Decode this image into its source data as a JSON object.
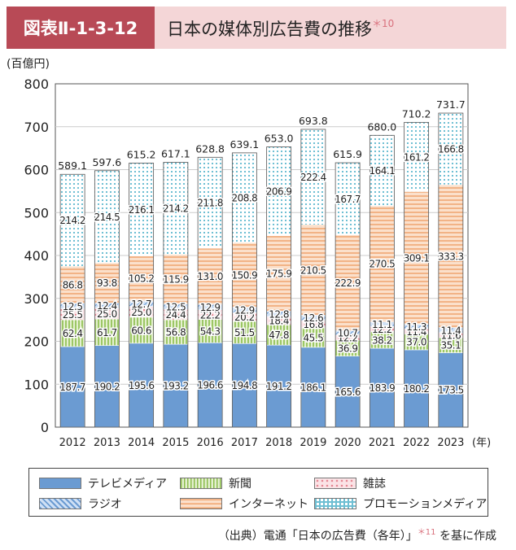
{
  "header": {
    "badge": "図表Ⅱ-1-3-12",
    "title": "日本の媒体別広告費の推移",
    "title_note": "＊10"
  },
  "source": {
    "prefix": "（出典）電通「日本の広告費（各年）」",
    "note": "＊11",
    "suffix": " を基に作成"
  },
  "colors": {
    "tv": "#6b9bd2",
    "radio": "#9ec0ea",
    "newspaper": "#b9d98a",
    "magazine": "#f2b8c0",
    "internet": "#f4c09a",
    "promotion": "#a8d8e8",
    "accent": "#b84a56"
  },
  "chart_data": {
    "type": "bar",
    "stacked": true,
    "ylabel": "(百億円)",
    "xunit": "(年)",
    "ylim": [
      0,
      800
    ],
    "yticks": [
      0,
      100,
      200,
      300,
      400,
      500,
      600,
      700,
      800
    ],
    "categories": [
      "2012",
      "2013",
      "2014",
      "2015",
      "2016",
      "2017",
      "2018",
      "2019",
      "2020",
      "2021",
      "2022",
      "2023"
    ],
    "totals": [
      "589.1",
      "597.6",
      "615.2",
      "617.1",
      "628.8",
      "639.1",
      "653.0",
      "693.8",
      "615.9",
      "680.0",
      "710.2",
      "731.7"
    ],
    "series": [
      {
        "key": "tv",
        "name": "テレビメディア",
        "values": [
          187.7,
          190.2,
          195.6,
          193.2,
          196.6,
          194.8,
          191.2,
          186.1,
          165.6,
          183.9,
          180.2,
          173.5
        ]
      },
      {
        "key": "newspaper",
        "name": "新聞",
        "values": [
          62.4,
          61.7,
          60.6,
          56.8,
          54.3,
          51.5,
          47.8,
          45.5,
          36.9,
          38.2,
          37.0,
          35.1
        ]
      },
      {
        "key": "magazine",
        "name": "雑誌",
        "values": [
          25.5,
          25.0,
          25.0,
          24.4,
          22.2,
          20.2,
          18.4,
          16.8,
          12.2,
          12.2,
          11.4,
          11.6
        ]
      },
      {
        "key": "radio",
        "name": "ラジオ",
        "values": [
          12.5,
          12.4,
          12.7,
          12.5,
          12.9,
          12.9,
          12.8,
          12.6,
          10.7,
          11.1,
          11.3,
          11.4
        ]
      },
      {
        "key": "internet",
        "name": "インターネット",
        "values": [
          86.8,
          93.8,
          105.2,
          115.9,
          131.0,
          150.9,
          175.9,
          210.5,
          222.9,
          270.5,
          309.1,
          333.3
        ]
      },
      {
        "key": "promotion",
        "name": "プロモーションメディア",
        "values": [
          214.2,
          214.5,
          216.1,
          214.2,
          211.8,
          208.8,
          206.9,
          222.4,
          167.7,
          164.1,
          161.2,
          166.8
        ]
      }
    ]
  },
  "legend": [
    {
      "key": "tv",
      "label": "テレビメディア"
    },
    {
      "key": "newspaper",
      "label": "新聞"
    },
    {
      "key": "magazine",
      "label": "雑誌"
    },
    {
      "key": "radio",
      "label": "ラジオ"
    },
    {
      "key": "internet",
      "label": "インターネット"
    },
    {
      "key": "promotion",
      "label": "プロモーションメディア"
    }
  ]
}
